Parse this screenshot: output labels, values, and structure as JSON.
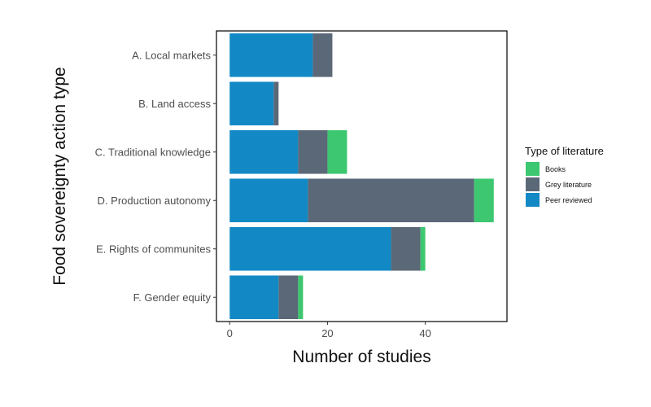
{
  "chart_data": {
    "type": "bar",
    "orientation": "horizontal",
    "stacked": true,
    "categories": [
      "A. Local markets",
      "B. Land access",
      "C. Traditional knowledge",
      "D. Production autonomy",
      "E. Rights of communites",
      "F. Gender equity"
    ],
    "series": [
      {
        "name": "Peer reviewed",
        "color": "#1289c5",
        "values": [
          17,
          9,
          14,
          16,
          33,
          10
        ]
      },
      {
        "name": "Grey literature",
        "color": "#5b6878",
        "values": [
          4,
          1,
          6,
          34,
          6,
          4
        ]
      },
      {
        "name": "Books",
        "color": "#3dc770",
        "values": [
          0,
          0,
          4,
          4,
          1,
          1
        ]
      }
    ],
    "xlabel": "Number of studies",
    "ylabel": "Food sovereignty action type",
    "xlim": [
      -2.7,
      56.7
    ],
    "xticks": [
      0,
      20,
      40
    ],
    "grid": false,
    "legend": {
      "title": "Type of literature",
      "position": "right",
      "entries": [
        "Books",
        "Grey literature",
        "Peer reviewed"
      ]
    }
  }
}
